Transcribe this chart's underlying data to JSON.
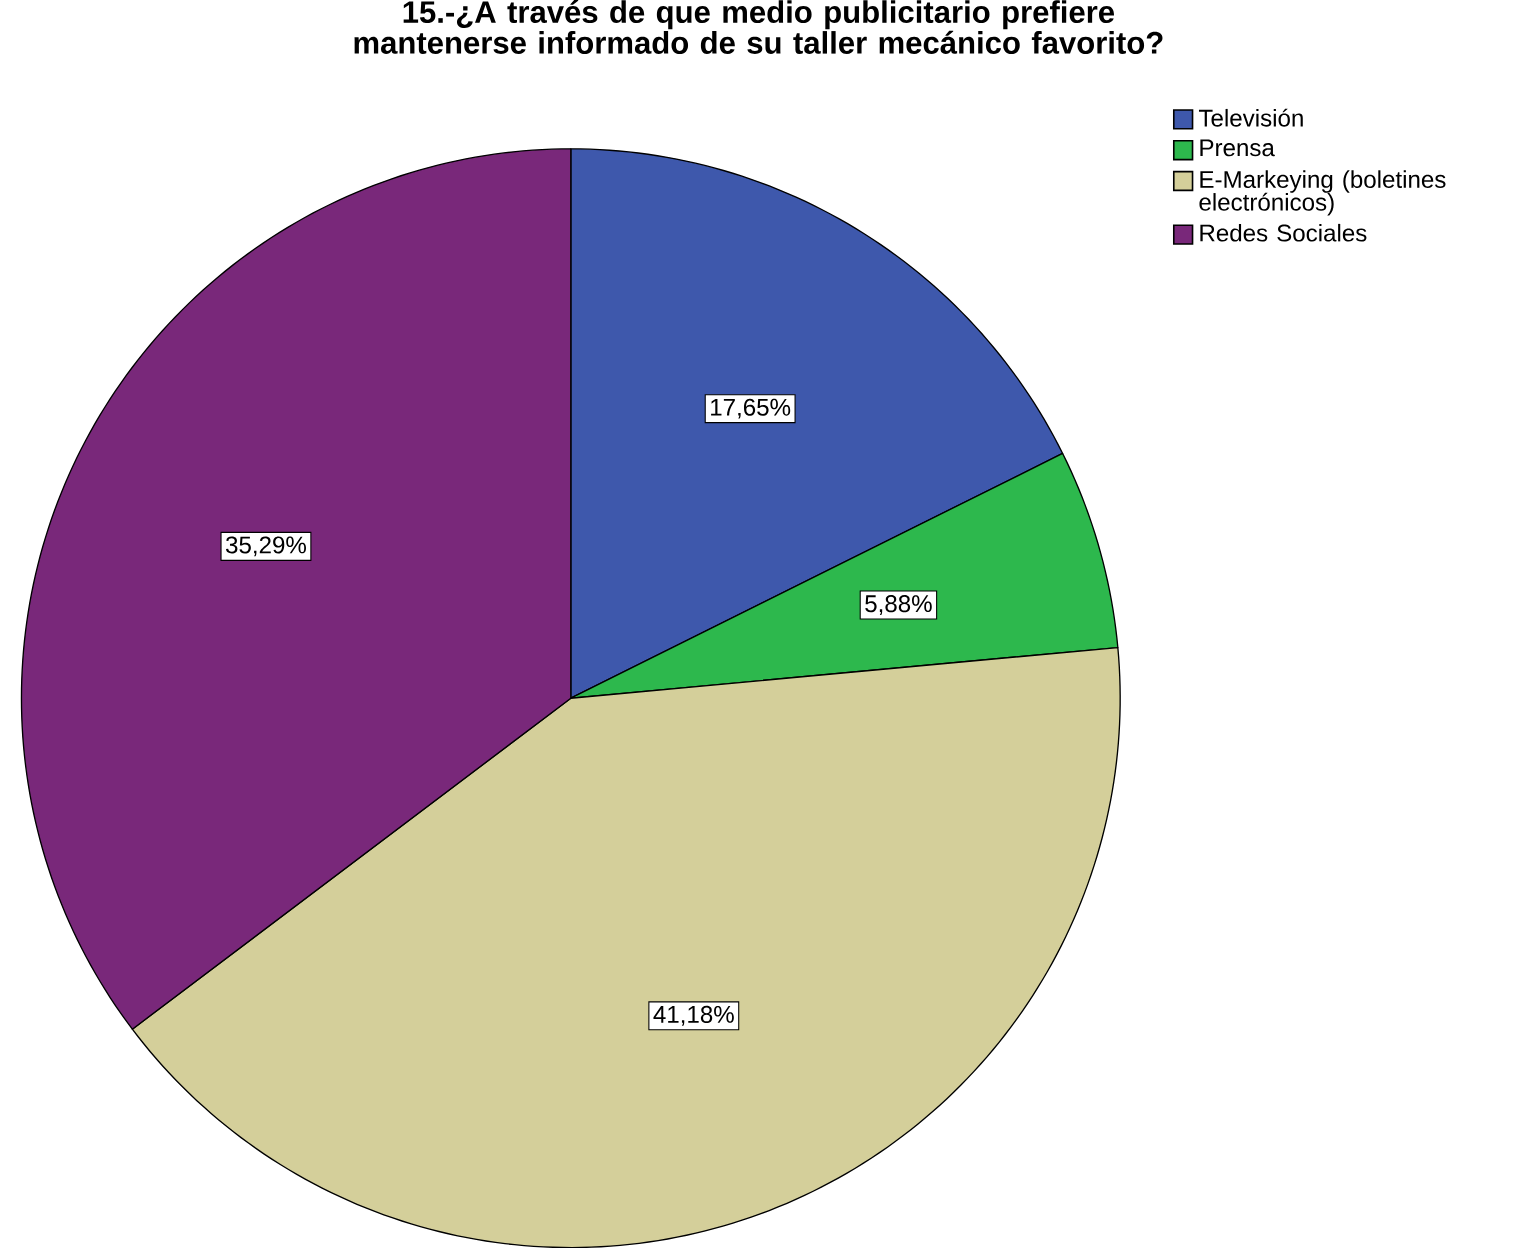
{
  "chart_data": {
    "type": "pie",
    "title": "15.-¿A través de que medio publicitario prefiere mantenerse informado de su taller mecánico favorito?",
    "categories": [
      "Televisión",
      "Prensa",
      "E-Markeying (boletines electrónicos)",
      "Redes Sociales"
    ],
    "values": [
      17.65,
      5.88,
      41.18,
      35.29
    ],
    "value_labels": [
      "17,65%",
      "5,88%",
      "41,18%",
      "35,29%"
    ],
    "colors": [
      "#3e58ac",
      "#2db84d",
      "#d4cf9a",
      "#79287a"
    ],
    "legend": "top right"
  }
}
